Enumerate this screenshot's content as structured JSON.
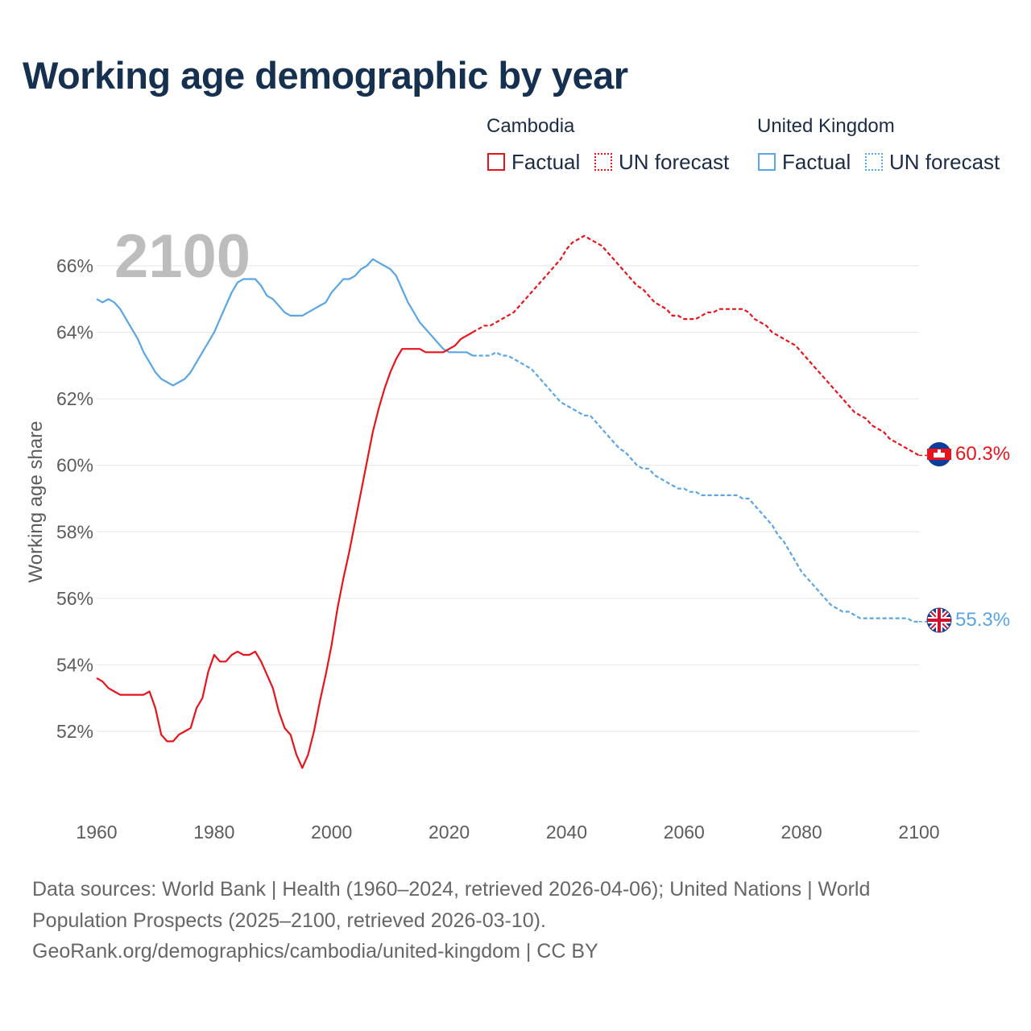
{
  "title": "Working age demographic by year",
  "legend": {
    "groups": [
      {
        "name": "Cambodia",
        "color": "#e8131b",
        "factual_label": "Factual",
        "forecast_label": "UN forecast"
      },
      {
        "name": "United Kingdom",
        "color": "#5aa5e3",
        "factual_label": "Factual",
        "forecast_label": "UN forecast"
      }
    ]
  },
  "chart_data": {
    "type": "line",
    "title": "Working age demographic by year",
    "ylabel": "Working age share",
    "xlabel": "",
    "year_watermark": "2100",
    "x_ticks": [
      1960,
      1980,
      2000,
      2020,
      2040,
      2060,
      2080,
      2100
    ],
    "y_ticks": [
      52,
      54,
      56,
      58,
      60,
      62,
      64,
      66
    ],
    "y_tick_suffix": "%",
    "xlim": [
      1960,
      2100
    ],
    "ylim": [
      50,
      67.5
    ],
    "series": [
      {
        "name": "Cambodia",
        "color": "#e8131b",
        "end_label": "60.3%",
        "factual": [
          [
            1960,
            53.6
          ],
          [
            1961,
            53.5
          ],
          [
            1962,
            53.3
          ],
          [
            1963,
            53.2
          ],
          [
            1964,
            53.1
          ],
          [
            1965,
            53.1
          ],
          [
            1966,
            53.1
          ],
          [
            1967,
            53.1
          ],
          [
            1968,
            53.1
          ],
          [
            1969,
            53.2
          ],
          [
            1970,
            52.7
          ],
          [
            1971,
            51.9
          ],
          [
            1972,
            51.7
          ],
          [
            1973,
            51.7
          ],
          [
            1974,
            51.9
          ],
          [
            1975,
            52.0
          ],
          [
            1976,
            52.1
          ],
          [
            1977,
            52.7
          ],
          [
            1978,
            53.0
          ],
          [
            1979,
            53.8
          ],
          [
            1980,
            54.3
          ],
          [
            1981,
            54.1
          ],
          [
            1982,
            54.1
          ],
          [
            1983,
            54.3
          ],
          [
            1984,
            54.4
          ],
          [
            1985,
            54.3
          ],
          [
            1986,
            54.3
          ],
          [
            1987,
            54.4
          ],
          [
            1988,
            54.1
          ],
          [
            1989,
            53.7
          ],
          [
            1990,
            53.3
          ],
          [
            1991,
            52.6
          ],
          [
            1992,
            52.1
          ],
          [
            1993,
            51.9
          ],
          [
            1994,
            51.3
          ],
          [
            1995,
            50.9
          ],
          [
            1996,
            51.3
          ],
          [
            1997,
            52.0
          ],
          [
            1998,
            52.9
          ],
          [
            1999,
            53.7
          ],
          [
            2000,
            54.6
          ],
          [
            2001,
            55.7
          ],
          [
            2002,
            56.6
          ],
          [
            2003,
            57.4
          ],
          [
            2004,
            58.3
          ],
          [
            2005,
            59.2
          ],
          [
            2006,
            60.1
          ],
          [
            2007,
            61.0
          ],
          [
            2008,
            61.7
          ],
          [
            2009,
            62.3
          ],
          [
            2010,
            62.8
          ],
          [
            2011,
            63.2
          ],
          [
            2012,
            63.5
          ],
          [
            2013,
            63.5
          ],
          [
            2014,
            63.5
          ],
          [
            2015,
            63.5
          ],
          [
            2016,
            63.4
          ],
          [
            2017,
            63.4
          ],
          [
            2018,
            63.4
          ],
          [
            2019,
            63.4
          ],
          [
            2020,
            63.5
          ],
          [
            2021,
            63.6
          ],
          [
            2022,
            63.8
          ],
          [
            2023,
            63.9
          ],
          [
            2024,
            64.0
          ]
        ],
        "forecast": [
          [
            2024,
            64.0
          ],
          [
            2025,
            64.1
          ],
          [
            2026,
            64.2
          ],
          [
            2027,
            64.2
          ],
          [
            2028,
            64.3
          ],
          [
            2029,
            64.4
          ],
          [
            2030,
            64.5
          ],
          [
            2031,
            64.6
          ],
          [
            2032,
            64.8
          ],
          [
            2033,
            65.0
          ],
          [
            2034,
            65.2
          ],
          [
            2035,
            65.4
          ],
          [
            2036,
            65.6
          ],
          [
            2037,
            65.8
          ],
          [
            2038,
            66.0
          ],
          [
            2039,
            66.2
          ],
          [
            2040,
            66.5
          ],
          [
            2041,
            66.7
          ],
          [
            2042,
            66.8
          ],
          [
            2043,
            66.9
          ],
          [
            2044,
            66.8
          ],
          [
            2045,
            66.7
          ],
          [
            2046,
            66.6
          ],
          [
            2047,
            66.4
          ],
          [
            2048,
            66.2
          ],
          [
            2049,
            66.0
          ],
          [
            2050,
            65.8
          ],
          [
            2051,
            65.6
          ],
          [
            2052,
            65.4
          ],
          [
            2053,
            65.3
          ],
          [
            2054,
            65.1
          ],
          [
            2055,
            64.9
          ],
          [
            2056,
            64.8
          ],
          [
            2057,
            64.7
          ],
          [
            2058,
            64.5
          ],
          [
            2059,
            64.5
          ],
          [
            2060,
            64.4
          ],
          [
            2061,
            64.4
          ],
          [
            2062,
            64.4
          ],
          [
            2063,
            64.5
          ],
          [
            2064,
            64.6
          ],
          [
            2065,
            64.6
          ],
          [
            2066,
            64.7
          ],
          [
            2067,
            64.7
          ],
          [
            2068,
            64.7
          ],
          [
            2069,
            64.7
          ],
          [
            2070,
            64.7
          ],
          [
            2071,
            64.6
          ],
          [
            2072,
            64.4
          ],
          [
            2073,
            64.3
          ],
          [
            2074,
            64.2
          ],
          [
            2075,
            64.0
          ],
          [
            2076,
            63.9
          ],
          [
            2077,
            63.8
          ],
          [
            2078,
            63.7
          ],
          [
            2079,
            63.6
          ],
          [
            2080,
            63.4
          ],
          [
            2081,
            63.2
          ],
          [
            2082,
            63.0
          ],
          [
            2083,
            62.8
          ],
          [
            2084,
            62.6
          ],
          [
            2085,
            62.4
          ],
          [
            2086,
            62.2
          ],
          [
            2087,
            62.0
          ],
          [
            2088,
            61.8
          ],
          [
            2089,
            61.6
          ],
          [
            2090,
            61.5
          ],
          [
            2091,
            61.4
          ],
          [
            2092,
            61.2
          ],
          [
            2093,
            61.1
          ],
          [
            2094,
            61.0
          ],
          [
            2095,
            60.8
          ],
          [
            2096,
            60.7
          ],
          [
            2097,
            60.6
          ],
          [
            2098,
            60.5
          ],
          [
            2099,
            60.4
          ],
          [
            2100,
            60.3
          ]
        ]
      },
      {
        "name": "United Kingdom",
        "color": "#5aa5e3",
        "end_label": "55.3%",
        "factual": [
          [
            1960,
            65.0
          ],
          [
            1961,
            64.9
          ],
          [
            1962,
            65.0
          ],
          [
            1963,
            64.9
          ],
          [
            1964,
            64.7
          ],
          [
            1965,
            64.4
          ],
          [
            1966,
            64.1
          ],
          [
            1967,
            63.8
          ],
          [
            1968,
            63.4
          ],
          [
            1969,
            63.1
          ],
          [
            1970,
            62.8
          ],
          [
            1971,
            62.6
          ],
          [
            1972,
            62.5
          ],
          [
            1973,
            62.4
          ],
          [
            1974,
            62.5
          ],
          [
            1975,
            62.6
          ],
          [
            1976,
            62.8
          ],
          [
            1977,
            63.1
          ],
          [
            1978,
            63.4
          ],
          [
            1979,
            63.7
          ],
          [
            1980,
            64.0
          ],
          [
            1981,
            64.4
          ],
          [
            1982,
            64.8
          ],
          [
            1983,
            65.2
          ],
          [
            1984,
            65.5
          ],
          [
            1985,
            65.6
          ],
          [
            1986,
            65.6
          ],
          [
            1987,
            65.6
          ],
          [
            1988,
            65.4
          ],
          [
            1989,
            65.1
          ],
          [
            1990,
            65.0
          ],
          [
            1991,
            64.8
          ],
          [
            1992,
            64.6
          ],
          [
            1993,
            64.5
          ],
          [
            1994,
            64.5
          ],
          [
            1995,
            64.5
          ],
          [
            1996,
            64.6
          ],
          [
            1997,
            64.7
          ],
          [
            1998,
            64.8
          ],
          [
            1999,
            64.9
          ],
          [
            2000,
            65.2
          ],
          [
            2001,
            65.4
          ],
          [
            2002,
            65.6
          ],
          [
            2003,
            65.6
          ],
          [
            2004,
            65.7
          ],
          [
            2005,
            65.9
          ],
          [
            2006,
            66.0
          ],
          [
            2007,
            66.2
          ],
          [
            2008,
            66.1
          ],
          [
            2009,
            66.0
          ],
          [
            2010,
            65.9
          ],
          [
            2011,
            65.7
          ],
          [
            2012,
            65.3
          ],
          [
            2013,
            64.9
          ],
          [
            2014,
            64.6
          ],
          [
            2015,
            64.3
          ],
          [
            2016,
            64.1
          ],
          [
            2017,
            63.9
          ],
          [
            2018,
            63.7
          ],
          [
            2019,
            63.5
          ],
          [
            2020,
            63.4
          ],
          [
            2021,
            63.4
          ],
          [
            2022,
            63.4
          ],
          [
            2023,
            63.4
          ],
          [
            2024,
            63.3
          ]
        ],
        "forecast": [
          [
            2024,
            63.3
          ],
          [
            2025,
            63.3
          ],
          [
            2026,
            63.3
          ],
          [
            2027,
            63.3
          ],
          [
            2028,
            63.4
          ],
          [
            2029,
            63.3
          ],
          [
            2030,
            63.3
          ],
          [
            2031,
            63.2
          ],
          [
            2032,
            63.1
          ],
          [
            2033,
            63.0
          ],
          [
            2034,
            62.9
          ],
          [
            2035,
            62.7
          ],
          [
            2036,
            62.5
          ],
          [
            2037,
            62.3
          ],
          [
            2038,
            62.1
          ],
          [
            2039,
            61.9
          ],
          [
            2040,
            61.8
          ],
          [
            2041,
            61.7
          ],
          [
            2042,
            61.6
          ],
          [
            2043,
            61.5
          ],
          [
            2044,
            61.5
          ],
          [
            2045,
            61.3
          ],
          [
            2046,
            61.1
          ],
          [
            2047,
            60.9
          ],
          [
            2048,
            60.7
          ],
          [
            2049,
            60.5
          ],
          [
            2050,
            60.4
          ],
          [
            2051,
            60.2
          ],
          [
            2052,
            60.0
          ],
          [
            2053,
            59.9
          ],
          [
            2054,
            59.9
          ],
          [
            2055,
            59.7
          ],
          [
            2056,
            59.6
          ],
          [
            2057,
            59.5
          ],
          [
            2058,
            59.4
          ],
          [
            2059,
            59.3
          ],
          [
            2060,
            59.3
          ],
          [
            2061,
            59.2
          ],
          [
            2062,
            59.2
          ],
          [
            2063,
            59.1
          ],
          [
            2064,
            59.1
          ],
          [
            2065,
            59.1
          ],
          [
            2066,
            59.1
          ],
          [
            2067,
            59.1
          ],
          [
            2068,
            59.1
          ],
          [
            2069,
            59.1
          ],
          [
            2070,
            59.0
          ],
          [
            2071,
            59.0
          ],
          [
            2072,
            58.8
          ],
          [
            2073,
            58.6
          ],
          [
            2074,
            58.4
          ],
          [
            2075,
            58.2
          ],
          [
            2076,
            57.9
          ],
          [
            2077,
            57.7
          ],
          [
            2078,
            57.4
          ],
          [
            2079,
            57.1
          ],
          [
            2080,
            56.8
          ],
          [
            2081,
            56.6
          ],
          [
            2082,
            56.4
          ],
          [
            2083,
            56.2
          ],
          [
            2084,
            56.0
          ],
          [
            2085,
            55.8
          ],
          [
            2086,
            55.7
          ],
          [
            2087,
            55.6
          ],
          [
            2088,
            55.6
          ],
          [
            2089,
            55.5
          ],
          [
            2090,
            55.4
          ],
          [
            2091,
            55.4
          ],
          [
            2092,
            55.4
          ],
          [
            2093,
            55.4
          ],
          [
            2094,
            55.4
          ],
          [
            2095,
            55.4
          ],
          [
            2096,
            55.4
          ],
          [
            2097,
            55.4
          ],
          [
            2098,
            55.4
          ],
          [
            2099,
            55.3
          ],
          [
            2100,
            55.3
          ]
        ]
      }
    ]
  },
  "footer": {
    "line1": "Data sources: World Bank | Health (1960–2024, retrieved 2026-04-06); United Nations | World",
    "line2": "Population Prospects (2025–2100, retrieved 2026-03-10).",
    "line3": "GeoRank.org/demographics/cambodia/united-kingdom | CC BY"
  }
}
